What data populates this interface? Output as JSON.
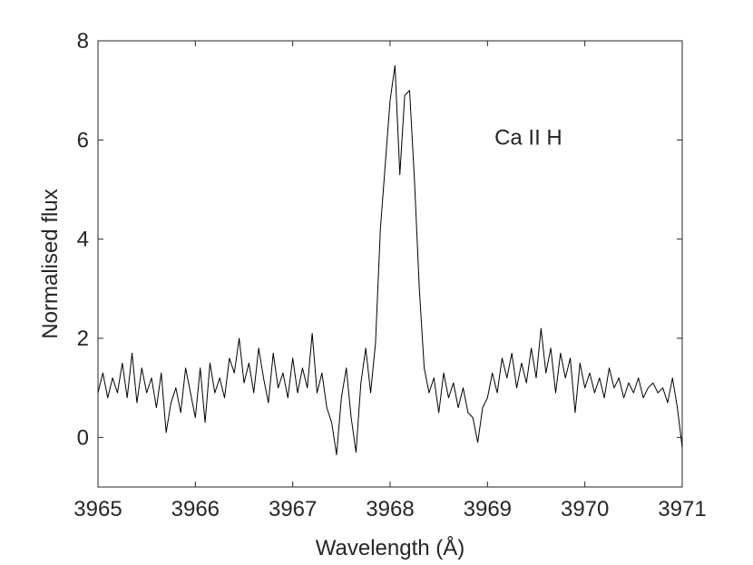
{
  "chart_data": {
    "type": "line",
    "xlabel": "Wavelength (Å)",
    "ylabel": "Normalised flux",
    "annotation": {
      "text": "Ca II H",
      "x": 3969.42,
      "y": 6.05
    },
    "xlim": [
      3965,
      3971
    ],
    "ylim": [
      -1,
      8
    ],
    "xticks": [
      3965,
      3966,
      3967,
      3968,
      3969,
      3970,
      3971
    ],
    "yticks": [
      0,
      2,
      4,
      6,
      8
    ],
    "grid": false,
    "series": [
      {
        "name": "Ca II H",
        "color": "#000000",
        "x": [
          3965.0,
          3965.05,
          3965.1,
          3965.15,
          3965.2,
          3965.25,
          3965.3,
          3965.35,
          3965.4,
          3965.45,
          3965.5,
          3965.55,
          3965.6,
          3965.65,
          3965.7,
          3965.75,
          3965.8,
          3965.85,
          3965.9,
          3965.95,
          3966.0,
          3966.05,
          3966.1,
          3966.15,
          3966.2,
          3966.25,
          3966.3,
          3966.35,
          3966.4,
          3966.45,
          3966.5,
          3966.55,
          3966.6,
          3966.65,
          3966.7,
          3966.75,
          3966.8,
          3966.85,
          3966.9,
          3966.95,
          3967.0,
          3967.05,
          3967.1,
          3967.15,
          3967.2,
          3967.25,
          3967.3,
          3967.35,
          3967.4,
          3967.45,
          3967.5,
          3967.55,
          3967.6,
          3967.65,
          3967.7,
          3967.75,
          3967.8,
          3967.85,
          3967.9,
          3967.95,
          3968.0,
          3968.05,
          3968.1,
          3968.15,
          3968.2,
          3968.25,
          3968.3,
          3968.35,
          3968.4,
          3968.45,
          3968.5,
          3968.55,
          3968.6,
          3968.65,
          3968.7,
          3968.75,
          3968.8,
          3968.85,
          3968.9,
          3968.95,
          3969.0,
          3969.05,
          3969.1,
          3969.15,
          3969.2,
          3969.25,
          3969.3,
          3969.35,
          3969.4,
          3969.45,
          3969.5,
          3969.55,
          3969.6,
          3969.65,
          3969.7,
          3969.75,
          3969.8,
          3969.85,
          3969.9,
          3969.95,
          3970.0,
          3970.05,
          3970.1,
          3970.15,
          3970.2,
          3970.25,
          3970.3,
          3970.35,
          3970.4,
          3970.45,
          3970.5,
          3970.55,
          3970.6,
          3970.65,
          3970.7,
          3970.75,
          3970.8,
          3970.85,
          3970.9,
          3970.95,
          3971.0
        ],
        "values": [
          0.9,
          1.3,
          0.8,
          1.2,
          0.9,
          1.5,
          0.8,
          1.7,
          0.7,
          1.4,
          0.9,
          1.2,
          0.6,
          1.3,
          0.1,
          0.7,
          1.0,
          0.5,
          1.4,
          0.9,
          0.4,
          1.4,
          0.3,
          1.5,
          0.9,
          1.2,
          0.8,
          1.6,
          1.3,
          2.0,
          1.1,
          1.5,
          0.9,
          1.8,
          1.2,
          0.7,
          1.7,
          1.0,
          1.3,
          0.8,
          1.6,
          0.9,
          1.4,
          1.0,
          2.1,
          0.9,
          1.3,
          0.6,
          0.3,
          -0.35,
          0.8,
          1.4,
          0.4,
          -0.3,
          1.1,
          1.8,
          0.9,
          1.9,
          4.2,
          5.5,
          6.8,
          7.5,
          5.3,
          6.9,
          7.0,
          5.2,
          3.0,
          1.4,
          0.9,
          1.2,
          0.5,
          1.3,
          0.8,
          1.1,
          0.6,
          1.0,
          0.5,
          0.4,
          -0.1,
          0.6,
          0.8,
          1.3,
          0.9,
          1.6,
          1.2,
          1.7,
          1.0,
          1.5,
          1.1,
          1.8,
          1.2,
          2.2,
          1.3,
          1.8,
          0.9,
          1.7,
          1.2,
          1.6,
          0.5,
          1.5,
          1.0,
          1.3,
          0.9,
          1.2,
          0.8,
          1.4,
          1.0,
          1.2,
          0.8,
          1.1,
          0.9,
          1.2,
          0.8,
          1.0,
          1.1,
          0.9,
          1.0,
          0.7,
          1.2,
          0.6,
          -0.2
        ]
      }
    ]
  }
}
